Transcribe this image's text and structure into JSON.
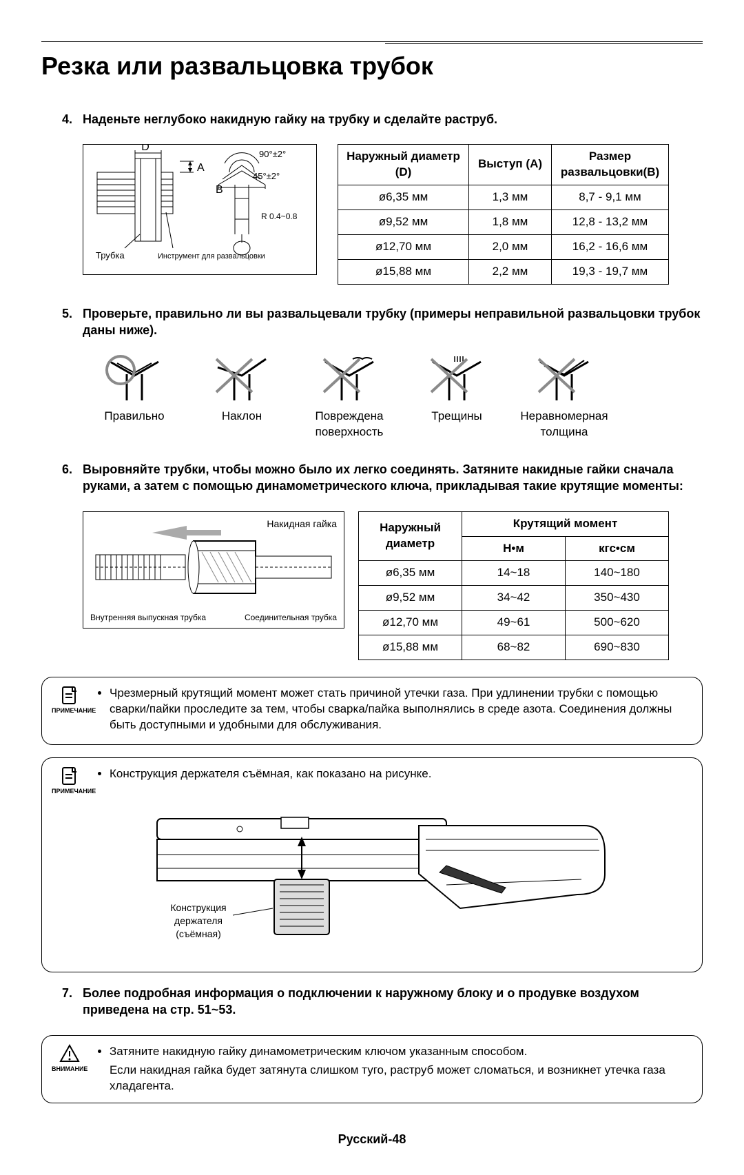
{
  "page_title": "Резка или развальцовка трубок",
  "step4": {
    "num": "4.",
    "text": "Наденьте неглубоко накидную гайку на трубку и сделайте раструб."
  },
  "diagram1": {
    "label_D": "D",
    "label_A": "A",
    "label_B": "B",
    "angle1": "90°±2°",
    "angle2": "45°±2°",
    "radius": "R 0.4~0.8",
    "pipe_label": "Трубка",
    "tool_label": "Инструмент для развальцовки"
  },
  "table1": {
    "headers": [
      "Наружный диаметр (D)",
      "Выступ (A)",
      "Размер развальцовки(B)"
    ],
    "rows": [
      [
        "ø6,35 мм",
        "1,3 мм",
        "8,7 - 9,1 мм"
      ],
      [
        "ø9,52 мм",
        "1,8 мм",
        "12,8 - 13,2 мм"
      ],
      [
        "ø12,70 мм",
        "2,0 мм",
        "16,2 - 16,6 мм"
      ],
      [
        "ø15,88 мм",
        "2,2 мм",
        "19,3 - 19,7 мм"
      ]
    ],
    "col_widths": [
      "190px",
      "120px",
      "170px"
    ]
  },
  "step5": {
    "num": "5.",
    "text": "Проверьте, правильно ли вы развальцевали трубку (примеры неправильной развальцовки трубок даны ниже)."
  },
  "flares": [
    {
      "label": "Правильно",
      "mark": "ok"
    },
    {
      "label": "Наклон",
      "mark": "bad"
    },
    {
      "label": "Повреждена поверхность",
      "mark": "bad"
    },
    {
      "label": "Трещины",
      "mark": "bad"
    },
    {
      "label": "Неравномерная толщина",
      "mark": "bad"
    }
  ],
  "step6": {
    "num": "6.",
    "text": "Выровняйте трубки, чтобы можно было их легко соединять. Затяните накидные гайки сначала руками, а затем с помощью динамометрического ключа, прикладывая такие крутящие моменты:"
  },
  "torque_diagram": {
    "nut_label": "Накидная гайка",
    "inner_pipe": "Внутренняя выпускная трубка",
    "conn_pipe": "Соединительная трубка"
  },
  "table2": {
    "header_main": "Наружный диаметр",
    "header_torque": "Крутящий момент",
    "sub_headers": [
      "Н•м",
      "кгс•см"
    ],
    "rows": [
      [
        "ø6,35 мм",
        "14~18",
        "140~180"
      ],
      [
        "ø9,52 мм",
        "34~42",
        "350~430"
      ],
      [
        "ø12,70 мм",
        "49~61",
        "500~620"
      ],
      [
        "ø15,88 мм",
        "68~82",
        "690~830"
      ]
    ],
    "col_widths": [
      "150px",
      "150px",
      "150px"
    ]
  },
  "note1": {
    "label": "ПРИМЕЧАНИЕ",
    "text": "Чрезмерный крутящий момент может стать причиной утечки газа. При удлинении трубки с помощью сварки/пайки проследите за тем, чтобы сварка/пайка выполнялись в среде азота.  Соединения должны быть доступными и удобными для обслуживания."
  },
  "note2": {
    "label": "ПРИМЕЧАНИЕ",
    "text": "Конструкция держателя съёмная, как показано на рисунке.",
    "holder_label": "Конструкция держателя (съёмная)"
  },
  "step7": {
    "num": "7.",
    "text": "Более подробная информация о подключении к наружному блоку и о продувке воздухом приведена на стр. 51~53."
  },
  "caution": {
    "label": "ВНИМАНИЕ",
    "line1": "Затяните накидную гайку динамометрическим ключом указанным способом.",
    "line2": "Если накидная гайка будет затянута слишком туго, раструб может сломаться, и возникнет утечка газа хладагента."
  },
  "footer": "Русский-48",
  "colors": {
    "text": "#000000",
    "bg": "#ffffff",
    "ok_stroke": "#8a8a8a",
    "bad_stroke": "#8a8a8a",
    "line": "#000000"
  }
}
